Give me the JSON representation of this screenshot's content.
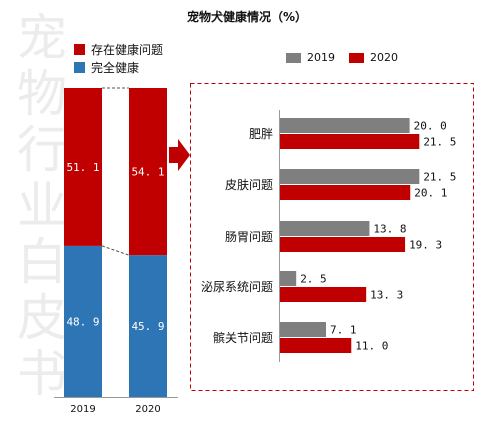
{
  "watermark": "宠物行业白皮书",
  "colors": {
    "red": "#c00000",
    "blue": "#2e75b6",
    "gray": "#7f7f7f",
    "accent_border": "#c00000"
  },
  "chart_data": [
    {
      "type": "bar",
      "stacked": true,
      "title": "宠物犬健康情况（%）",
      "categories": [
        "2019",
        "2020"
      ],
      "series": [
        {
          "name": "完全健康",
          "values": [
            48.9,
            45.9
          ]
        },
        {
          "name": "存在健康问题",
          "values": [
            51.1,
            54.1
          ]
        }
      ],
      "value_labels": [
        [
          "48. 9",
          "45. 9"
        ],
        [
          "51. 1",
          "54. 1"
        ]
      ],
      "ylim": [
        0,
        100
      ],
      "legend": "top-left"
    },
    {
      "type": "bar",
      "orientation": "horizontal",
      "categories": [
        "肥胖",
        "皮肤问题",
        "肠胃问题",
        "泌尿系统问题",
        "髌关节问题"
      ],
      "series": [
        {
          "name": "2019",
          "values": [
            20.0,
            21.5,
            13.8,
            2.5,
            7.1
          ],
          "labels": [
            "20. 0",
            "21. 5",
            "13. 8",
            "2. 5",
            "7. 1"
          ]
        },
        {
          "name": "2020",
          "values": [
            21.5,
            20.1,
            19.3,
            13.3,
            11.0
          ],
          "labels": [
            "21. 5",
            "20. 1",
            "19. 3",
            "13. 3",
            "11. 0"
          ]
        }
      ],
      "xlim": [
        0,
        25
      ],
      "legend": "top"
    }
  ]
}
